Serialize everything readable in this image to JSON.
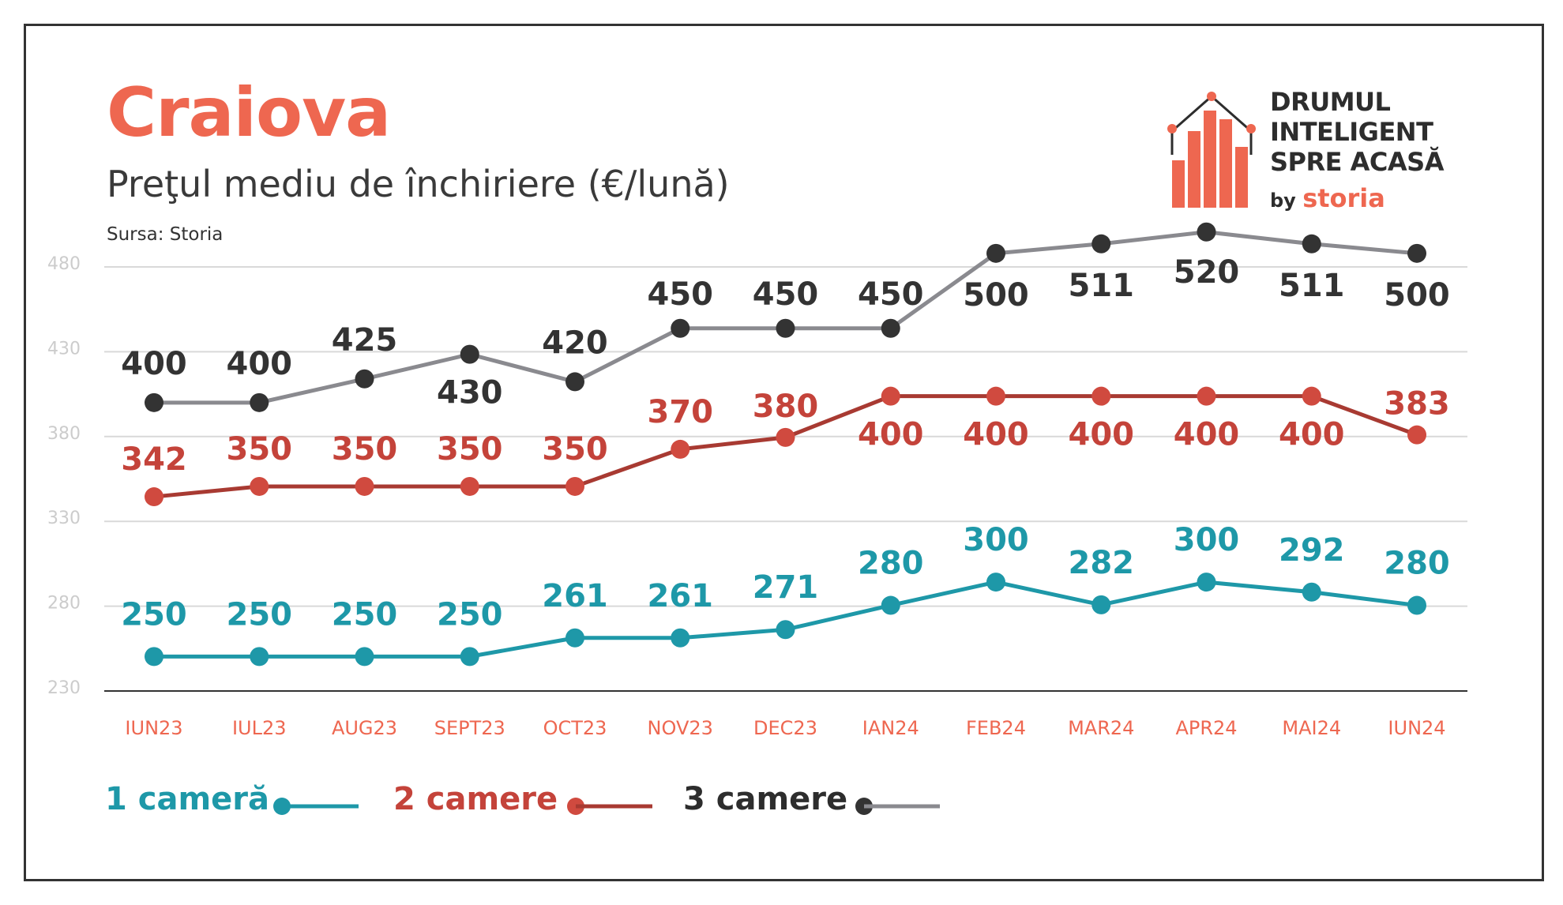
{
  "title": "Craiova",
  "subtitle": "Preţul mediu de închiriere (€/lună)",
  "source": "Sursa: Storia",
  "logo": {
    "line1": "DRUMUL",
    "line2": "INTELIGENT",
    "line3": "SPRE ACASĂ",
    "by": "by",
    "brand": "storia"
  },
  "colors": {
    "accent": "#EE6750",
    "one_room": "#1E98A8",
    "two_rooms": "#C4433A",
    "three_rooms": "#8A8A8F",
    "three_rooms_marker": "#333333",
    "grid": "#D9D9D9",
    "axis_tick": "#CCCCCC",
    "category": "#EE6750"
  },
  "chart_data": {
    "type": "line",
    "categories": [
      "IUN23",
      "IUL23",
      "AUG23",
      "SEPT23",
      "OCT23",
      "NOV23",
      "DEC23",
      "IAN24",
      "FEB24",
      "MAR24",
      "APR24",
      "MAI24",
      "IUN24"
    ],
    "y_ticks": [
      230,
      280,
      330,
      380,
      430,
      480
    ],
    "grid": true,
    "legend_position": "bottom",
    "series": [
      {
        "name": "1 cameră",
        "color": "#1E98A8",
        "marker": "#1E98A8",
        "values": [
          250,
          250,
          250,
          250,
          261,
          261,
          271,
          280,
          300,
          282,
          300,
          292,
          280
        ],
        "plot_y": [
          250.3,
          250.3,
          250.3,
          250.3,
          261.3,
          261.3,
          266.2,
          280.5,
          294.2,
          280.8,
          294.2,
          288.3,
          280.5
        ]
      },
      {
        "name": "2 camere",
        "color": "#A83A32",
        "marker": "#D04A3F",
        "values": [
          342,
          350,
          350,
          350,
          350,
          370,
          380,
          400,
          400,
          400,
          400,
          400,
          383
        ],
        "plot_y": [
          344.5,
          350.6,
          350.6,
          350.6,
          350.6,
          372.5,
          379.5,
          403.8,
          403.8,
          403.8,
          403.8,
          403.8,
          381.0
        ]
      },
      {
        "name": "3 camere",
        "color": "#8A8A8F",
        "marker": "#333333",
        "values": [
          400,
          400,
          425,
          430,
          420,
          450,
          450,
          450,
          500,
          511,
          520,
          511,
          500
        ],
        "plot_y": [
          400.0,
          400.0,
          414.0,
          428.5,
          412.3,
          443.8,
          443.8,
          443.8,
          488.0,
          493.6,
          500.6,
          493.6,
          488.0
        ]
      }
    ]
  }
}
